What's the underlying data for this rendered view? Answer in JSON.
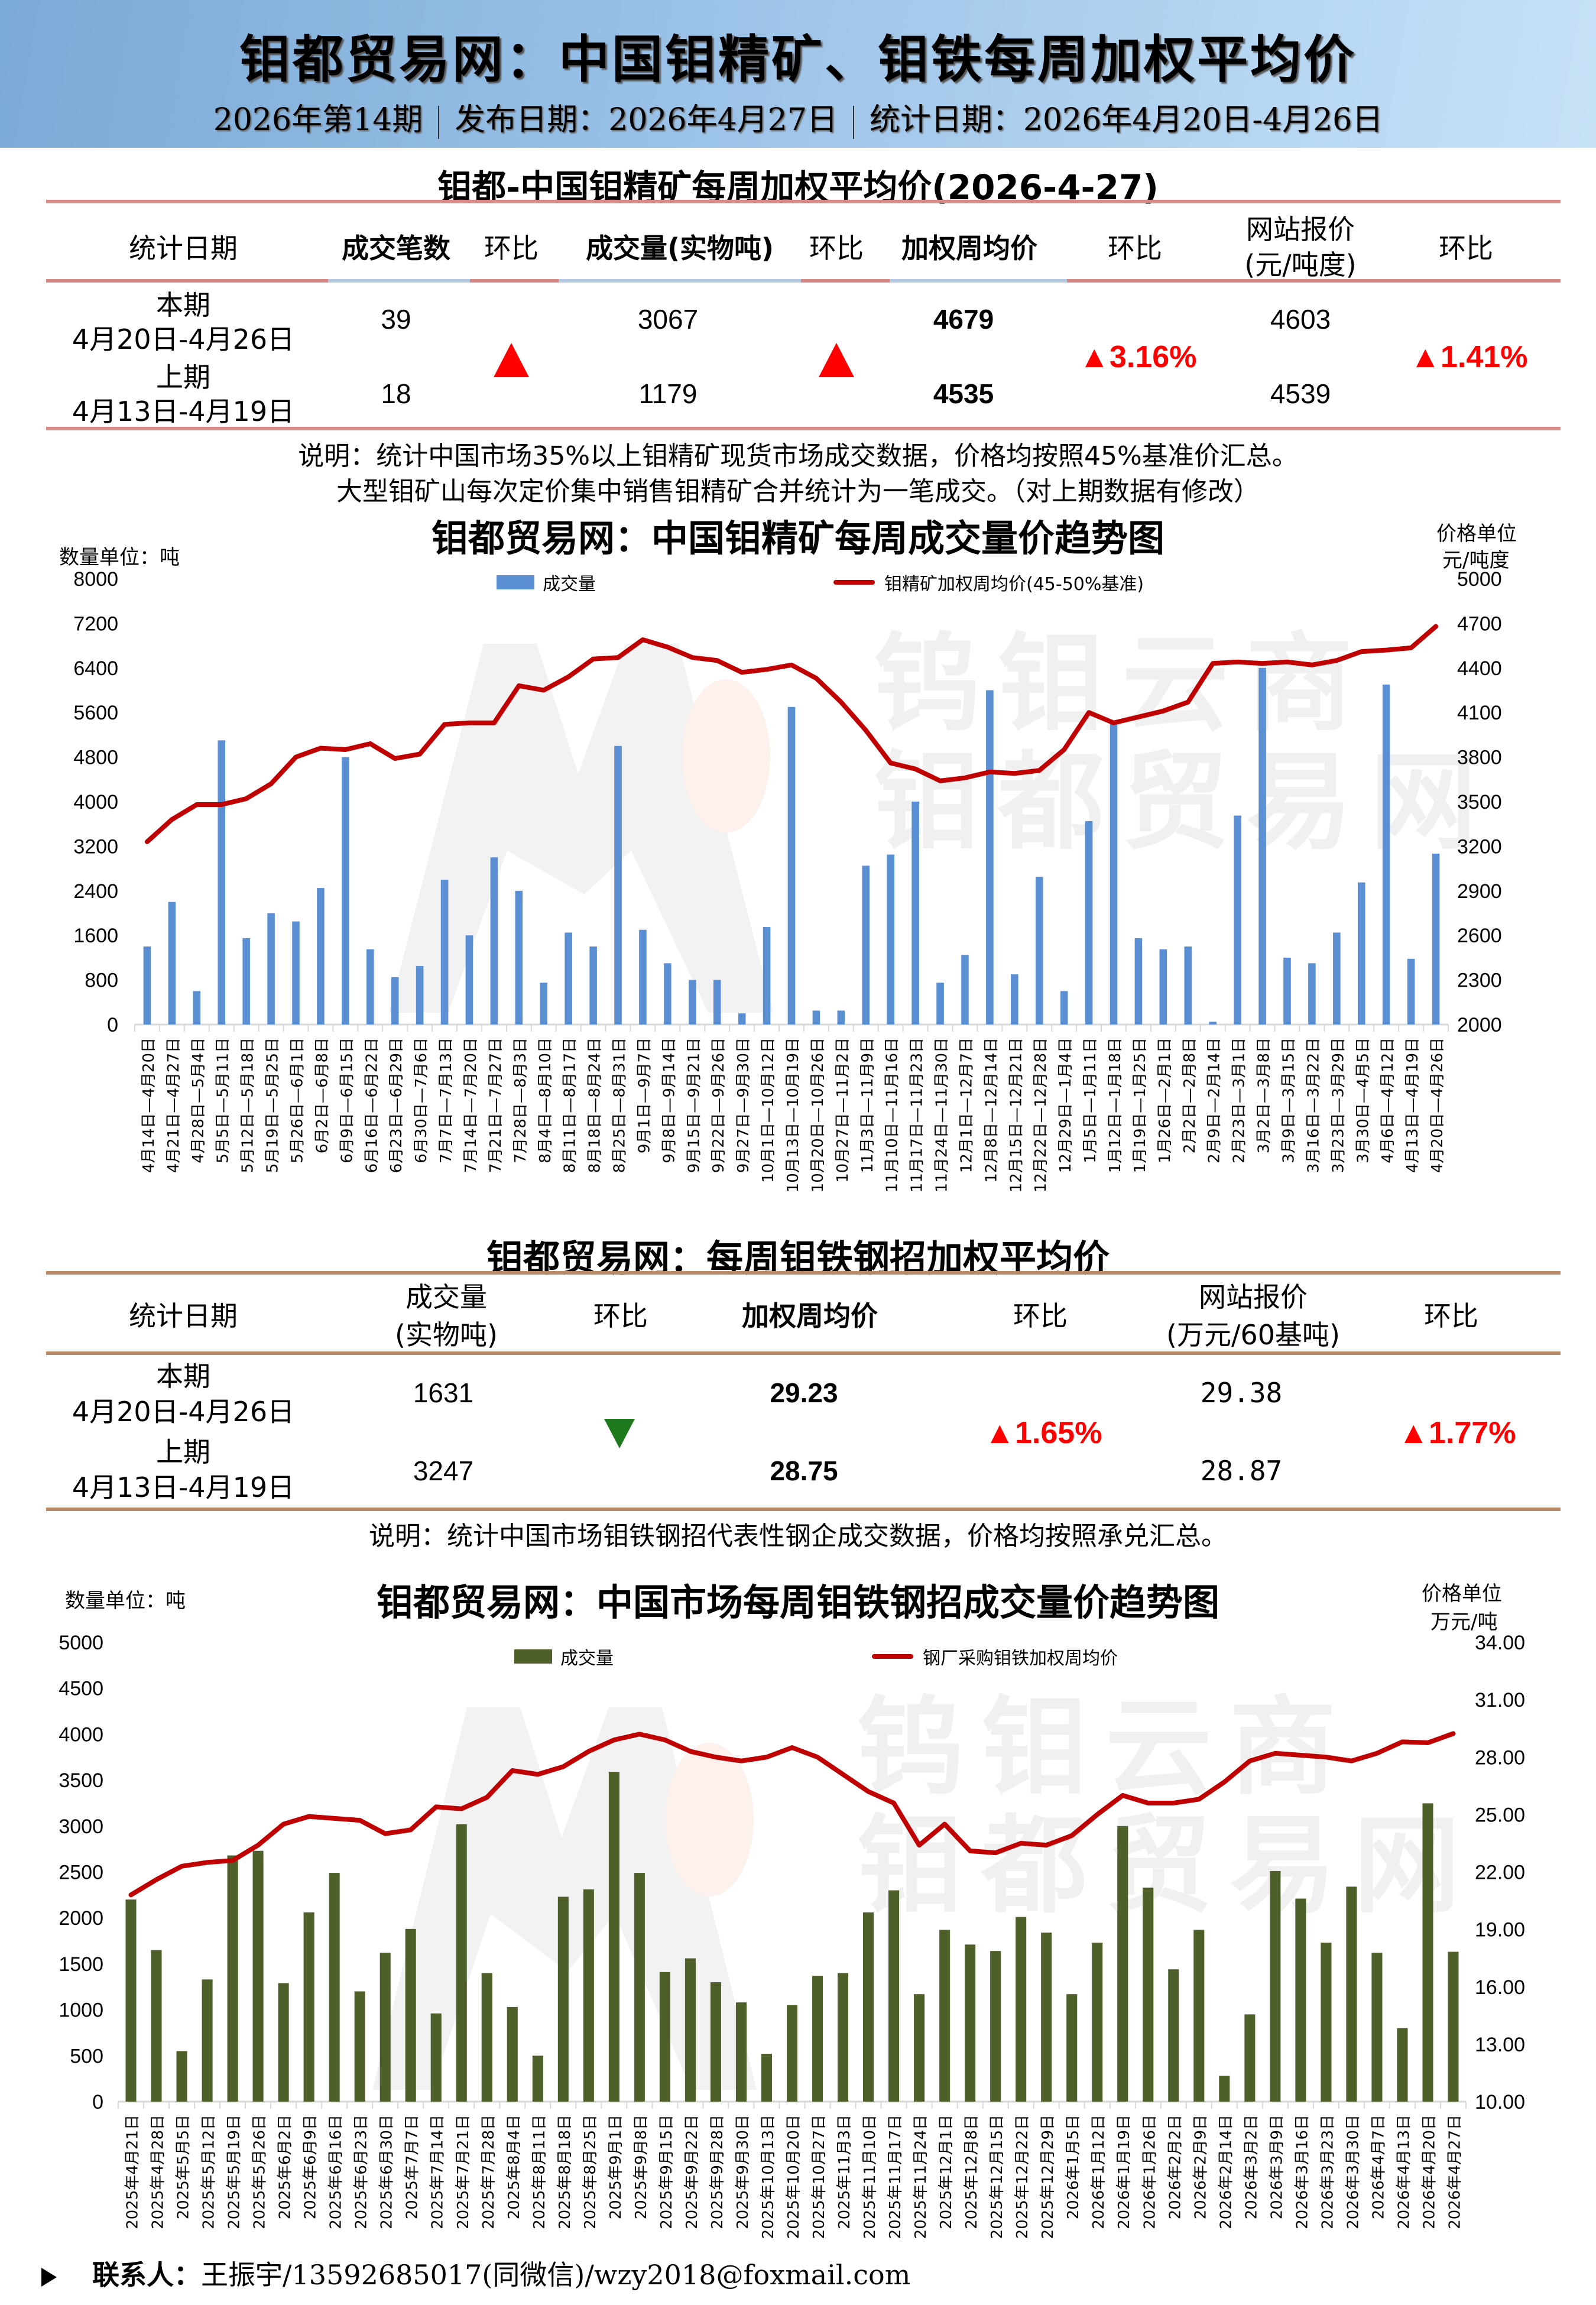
{
  "header": {
    "title": "钼都贸易网：中国钼精矿、钼铁每周加权平均价",
    "issue": "2026年第14期",
    "publish_date": "发布日期：2026年4月27日",
    "stat_period": "统计日期：2026年4月20日-4月26日"
  },
  "table1": {
    "title": "钼都-中国钼精矿每周加权平均价(2026-4-27)",
    "headers": {
      "date": "统计日期",
      "deals": "成交笔数",
      "deals_chg": "环比",
      "volume": "成交量(实物吨)",
      "volume_chg": "环比",
      "wavg": "加权周均价",
      "wavg_chg": "环比",
      "quote_l1": "网站报价",
      "quote_l2": "(元/吨度)",
      "quote_chg": "环比"
    },
    "current": {
      "label": "本期",
      "range": "4月20日-4月26日",
      "deals": "39",
      "volume": "3067",
      "wavg": "4679",
      "quote": "4603"
    },
    "previous": {
      "label": "上期",
      "range": "4月13日-4月19日",
      "deals": "18",
      "volume": "1179",
      "wavg": "4535",
      "quote": "4539"
    },
    "changes": {
      "deals": "up",
      "volume": "up",
      "wavg": "▲3.16%",
      "quote": "▲1.41%"
    },
    "note_line1": "说明：统计中国市场35%以上钼精矿现货市场成交数据，价格均按照45%基准价汇总。",
    "note_line2": "大型钼矿山每次定价集中销售钼精矿合并统计为一笔成交。（对上期数据有修改）"
  },
  "table2": {
    "title": "钼都贸易网：每周钼铁钢招加权平均价",
    "headers": {
      "date": "统计日期",
      "volume_l1": "成交量",
      "volume_l2": "(实物吨)",
      "volume_chg": "环比",
      "wavg": "加权周均价",
      "wavg_chg": "环比",
      "quote_l1": "网站报价",
      "quote_l2": "(万元/60基吨)",
      "quote_chg": "环比"
    },
    "current": {
      "label": "本期",
      "range": "4月20日-4月26日",
      "volume": "1631",
      "wavg": "29.23",
      "quote": "29.38"
    },
    "previous": {
      "label": "上期",
      "range": "4月13日-4月19日",
      "volume": "3247",
      "wavg": "28.75",
      "quote": "28.87"
    },
    "changes": {
      "volume": "down",
      "wavg": "▲1.65%",
      "quote": "▲1.77%"
    },
    "note": "说明：统计中国市场钼铁钢招代表性钢企成交数据，价格均按照承兑汇总。"
  },
  "colors": {
    "bar_blue": "#5b8fd4",
    "bar_green": "#4e5f2a",
    "line_red": "#c00000",
    "up_red": "#ff0000",
    "down_green": "#1f7a1f"
  },
  "chart_data": [
    {
      "type": "bar",
      "title": "钼都贸易网：中国钼精矿每周成交量价趋势图",
      "left_unit": "数量单位：吨",
      "right_unit_l1": "价格单位",
      "right_unit_l2": "元/吨度",
      "ylim": [
        0,
        8000
      ],
      "y2lim": [
        2000,
        5000
      ],
      "yticks": [
        "8000",
        "7200",
        "6400",
        "5600",
        "4800",
        "4000",
        "3200",
        "2400",
        "1600",
        "800",
        "0"
      ],
      "y2ticks": [
        "5000",
        "4700",
        "4400",
        "4100",
        "3800",
        "3500",
        "3200",
        "2900",
        "2600",
        "2300",
        "2000"
      ],
      "legend": [
        "成交量",
        "钼精矿加权周均价(45-50%基准)"
      ],
      "categories": [
        "4月14日—4月20日",
        "4月21日—4月27日",
        "4月28日—5月4日",
        "5月5日—5月11日",
        "5月12日—5月18日",
        "5月19日—5月25日",
        "5月26日—6月1日",
        "6月2日—6月8日",
        "6月9日—6月15日",
        "6月16日—6月22日",
        "6月23日—6月29日",
        "6月30日—7月6日",
        "7月7日—7月13日",
        "7月14日—7月20日",
        "7月21日—7月27日",
        "7月28日—8月3日",
        "8月4日—8月10日",
        "8月11日—8月17日",
        "8月18日—8月24日",
        "8月25日—8月31日",
        "9月1日—9月7日",
        "9月8日—9月14日",
        "9月15日—9月21日",
        "9月22日—9月26日",
        "9月27日—9月30日",
        "10月1日—10月12日",
        "10月13日—10月19日",
        "10月20日—10月26日",
        "10月27日—11月2日",
        "11月3日—11月9日",
        "11月10日—11月16日",
        "11月17日—11月23日",
        "11月24日—11月30日",
        "12月1日—12月7日",
        "12月8日—12月14日",
        "12月15日—12月21日",
        "12月22日—12月28日",
        "12月29日—1月4日",
        "1月5日—1月11日",
        "1月12日—1月18日",
        "1月19日—1月25日",
        "1月26日—2月1日",
        "2月2日—2月8日",
        "2月9日—2月14日",
        "2月23日—3月1日",
        "3月2日—3月8日",
        "3月9日—3月15日",
        "3月16日—3月22日",
        "3月23日—3月29日",
        "3月30日—4月5日",
        "4月6日—4月12日",
        "4月13日—4月19日",
        "4月20日—4月26日"
      ],
      "series": [
        {
          "name": "成交量",
          "axis": "left",
          "type": "bar",
          "values": [
            1400,
            2200,
            600,
            5100,
            1550,
            2000,
            1850,
            2450,
            4800,
            1350,
            850,
            1050,
            2600,
            1600,
            3000,
            2400,
            750,
            1650,
            1400,
            5000,
            1700,
            1100,
            800,
            800,
            200,
            1750,
            5700,
            250,
            250,
            2850,
            3050,
            4000,
            750,
            1250,
            6000,
            900,
            2650,
            600,
            3650,
            5400,
            1550,
            1350,
            1400,
            50,
            3750,
            6400,
            1200,
            1100,
            1650,
            2550,
            6100,
            1179,
            3067
          ]
        },
        {
          "name": "钼精矿加权周均价(45-50%基准)",
          "axis": "right",
          "type": "line",
          "values": [
            3230,
            3380,
            3480,
            3480,
            3520,
            3620,
            3800,
            3860,
            3850,
            3890,
            3790,
            3820,
            4020,
            4030,
            4030,
            4280,
            4250,
            4340,
            4460,
            4470,
            4590,
            4540,
            4470,
            4450,
            4370,
            4390,
            4420,
            4330,
            4170,
            3980,
            3760,
            3720,
            3640,
            3660,
            3700,
            3690,
            3710,
            3850,
            4100,
            4030,
            4070,
            4110,
            4170,
            4430,
            4440,
            4430,
            4440,
            4420,
            4450,
            4510,
            4520,
            4535,
            4679
          ]
        }
      ]
    },
    {
      "type": "bar",
      "title": "钼都贸易网：中国市场每周钼铁钢招成交量价趋势图",
      "left_unit": "数量单位：吨",
      "right_unit_l1": "价格单位",
      "right_unit_l2": "万元/吨",
      "ylim": [
        0,
        5000
      ],
      "y2lim": [
        10,
        34
      ],
      "yticks": [
        "5000",
        "4500",
        "4000",
        "3500",
        "3000",
        "2500",
        "2000",
        "1500",
        "1000",
        "500",
        "0"
      ],
      "y2ticks": [
        "34.00",
        "31.00",
        "28.00",
        "25.00",
        "22.00",
        "19.00",
        "16.00",
        "13.00",
        "10.00"
      ],
      "legend": [
        "成交量",
        "钢厂采购钼铁加权周均价"
      ],
      "categories": [
        "2025年4月21日",
        "2025年4月28日",
        "2025年5月5日",
        "2025年5月12日",
        "2025年5月19日",
        "2025年5月26日",
        "2025年6月2日",
        "2025年6月9日",
        "2025年6月16日",
        "2025年6月23日",
        "2025年6月30日",
        "2025年7月7日",
        "2025年7月14日",
        "2025年7月21日",
        "2025年7月28日",
        "2025年8月4日",
        "2025年8月11日",
        "2025年8月18日",
        "2025年8月25日",
        "2025年9月1日",
        "2025年9月8日",
        "2025年9月15日",
        "2025年9月22日",
        "2025年9月28日",
        "2025年9月30日",
        "2025年10月13日",
        "2025年10月20日",
        "2025年10月27日",
        "2025年11月3日",
        "2025年11月10日",
        "2025年11月17日",
        "2025年11月24日",
        "2025年12月1日",
        "2025年12月8日",
        "2025年12月15日",
        "2025年12月22日",
        "2025年12月29日",
        "2026年1月5日",
        "2026年1月12日",
        "2026年1月19日",
        "2026年1月26日",
        "2026年2月2日",
        "2026年2月9日",
        "2026年2月14日",
        "2026年3月2日",
        "2026年3月9日",
        "2026年3月16日",
        "2026年3月23日",
        "2026年3月30日",
        "2026年4月7日",
        "2026年4月13日",
        "2026年4月20日",
        "2026年4月27日"
      ],
      "series": [
        {
          "name": "成交量",
          "axis": "left",
          "type": "bar",
          "values": [
            2200,
            1650,
            550,
            1330,
            2680,
            2730,
            1290,
            2060,
            2490,
            1200,
            1620,
            1880,
            960,
            3020,
            1400,
            1030,
            500,
            2230,
            2310,
            3590,
            2490,
            1410,
            1560,
            1300,
            1080,
            520,
            1050,
            1370,
            1400,
            2060,
            2300,
            1170,
            1870,
            1710,
            1640,
            2010,
            1840,
            1170,
            1730,
            3000,
            2330,
            1440,
            1870,
            280,
            950,
            2510,
            2210,
            1730,
            2340,
            1620,
            800,
            3247,
            1631
          ]
        },
        {
          "name": "钢厂采购钼铁加权周均价",
          "axis": "right",
          "type": "line",
          "values": [
            20.8,
            21.6,
            22.3,
            22.5,
            22.6,
            23.4,
            24.5,
            24.9,
            24.8,
            24.7,
            24.0,
            24.2,
            25.4,
            25.3,
            25.9,
            27.3,
            27.1,
            27.5,
            28.3,
            28.9,
            29.2,
            28.9,
            28.3,
            28.0,
            27.8,
            28.0,
            28.5,
            28.0,
            27.1,
            26.2,
            25.6,
            23.4,
            24.5,
            23.1,
            23.0,
            23.5,
            23.4,
            23.9,
            25.0,
            26.0,
            25.6,
            25.6,
            25.8,
            26.7,
            27.8,
            28.2,
            28.1,
            28.0,
            27.8,
            28.2,
            28.8,
            28.75,
            29.23
          ]
        }
      ]
    }
  ],
  "footer": {
    "contact_label": "联系人：",
    "contact_info": "王振宇/13592685017(同微信)/wzy2018@foxmail.com"
  }
}
